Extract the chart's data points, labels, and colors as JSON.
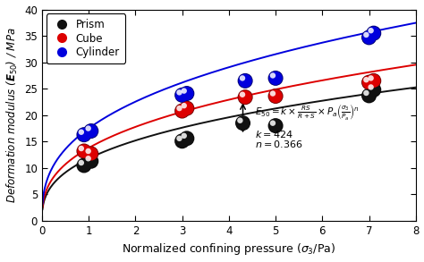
{
  "xlabel": "Normalized confining pressure ($\\sigma_3$/Pa)",
  "ylabel": "Deformation modulus ($\\boldsymbol{E}_{50}$) / MPa",
  "xlim": [
    0,
    8
  ],
  "ylim": [
    0,
    40
  ],
  "xticks": [
    0,
    1,
    2,
    3,
    4,
    5,
    6,
    7,
    8
  ],
  "yticks": [
    0,
    5,
    10,
    15,
    20,
    25,
    30,
    35,
    40
  ],
  "prism_x": [
    0.9,
    1.05,
    3.0,
    3.1,
    4.3,
    5.0,
    7.0,
    7.1
  ],
  "prism_y": [
    10.5,
    11.3,
    15.1,
    15.6,
    18.5,
    18.0,
    23.7,
    24.8
  ],
  "cube_x": [
    0.9,
    1.05,
    3.0,
    3.1,
    4.35,
    5.0,
    7.0,
    7.1
  ],
  "cube_y": [
    13.2,
    12.7,
    20.8,
    21.3,
    23.4,
    23.6,
    26.2,
    26.5
  ],
  "cylinder_x": [
    0.9,
    1.05,
    3.0,
    3.1,
    4.35,
    5.0,
    7.0,
    7.1
  ],
  "cylinder_y": [
    16.3,
    17.0,
    23.8,
    24.1,
    26.5,
    27.0,
    34.7,
    35.5
  ],
  "prism_color": "#111111",
  "cube_color": "#dd0000",
  "cylinder_color": "#0000dd",
  "A_prism": 11.0,
  "A_cube": 13.3,
  "A_cylinder": 16.5,
  "n": 0.366,
  "legend_labels": [
    "Prism",
    "Cube",
    "Cylinder"
  ],
  "legend_colors": [
    "#111111",
    "#dd0000",
    "#0000dd"
  ],
  "figsize": [
    4.74,
    2.93
  ],
  "dpi": 100
}
